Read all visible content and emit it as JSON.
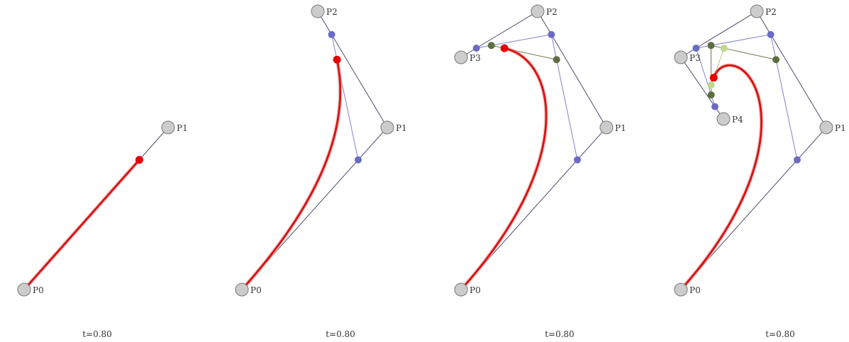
{
  "colors": {
    "background": "#ffffff",
    "control_line": "#4d4d6b",
    "level1_point": "#6b6bc4",
    "level1_line": "#8080cc",
    "level2_point": "#5d6e3f",
    "level2_line": "#6b7a4a",
    "level3_point": "#c2d68f",
    "level3_line": "#b5cc80",
    "curve": "#d91414",
    "curve_glow": "#f0b3b3",
    "end_point": "#e60000",
    "control_point_fill": "#cccccc",
    "control_point_stroke": "#777777"
  },
  "panels": [
    {
      "t_label": "t=0.80",
      "points": [
        {
          "label": "P0"
        },
        {
          "label": "P1"
        }
      ]
    },
    {
      "t_label": "t=0.80",
      "points": [
        {
          "label": "P0"
        },
        {
          "label": "P1"
        },
        {
          "label": "P2"
        }
      ]
    },
    {
      "t_label": "t=0.80",
      "points": [
        {
          "label": "P0"
        },
        {
          "label": "P1"
        },
        {
          "label": "P2"
        },
        {
          "label": "P3"
        }
      ]
    },
    {
      "t_label": "t=0.80",
      "points": [
        {
          "label": "P0"
        },
        {
          "label": "P1"
        },
        {
          "label": "P2"
        },
        {
          "label": "P3"
        },
        {
          "label": "P4"
        }
      ]
    }
  ]
}
